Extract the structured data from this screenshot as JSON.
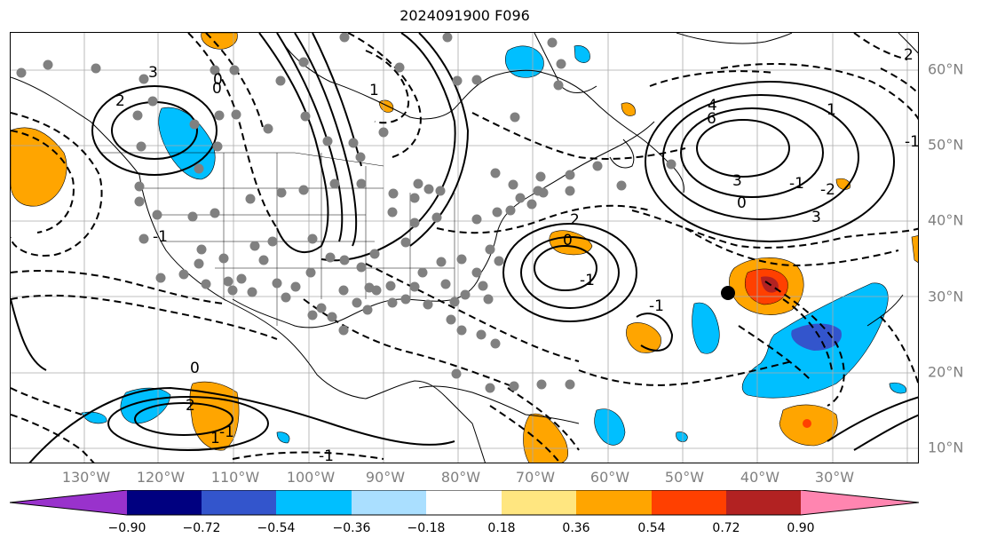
{
  "title": "2024091900 F096",
  "lon_labels": [
    "130°W",
    "120°W",
    "110°W",
    "100°W",
    "90°W",
    "80°W",
    "70°W",
    "60°W",
    "50°W",
    "40°W",
    "30°W"
  ],
  "lat_labels": [
    "60°N",
    "50°N",
    "40°N",
    "30°N",
    "20°N",
    "10°N"
  ],
  "colorbar": {
    "colors": [
      "#9932cc",
      "#8b1fc9",
      "#000080",
      "#3355cc",
      "#00bfff",
      "#aadfff",
      "#ffffff",
      "#ffe680",
      "#ffa500",
      "#ff4000",
      "#b22222",
      "#ff85b0"
    ],
    "ticks": [
      "−0.90",
      "−0.72",
      "−0.54",
      "−0.36",
      "−0.18",
      "0.18",
      "0.36",
      "0.54",
      "0.72",
      "0.90"
    ]
  },
  "contour_labels": [
    "2",
    "-1",
    "0",
    "1",
    "2",
    "3",
    "6",
    "4",
    "-1",
    "3",
    "3",
    "-1",
    "0",
    "-2",
    "1",
    "2",
    "-1",
    "0",
    "-1",
    "2",
    "1",
    "-1",
    "-1",
    "0",
    "0",
    "1"
  ]
}
